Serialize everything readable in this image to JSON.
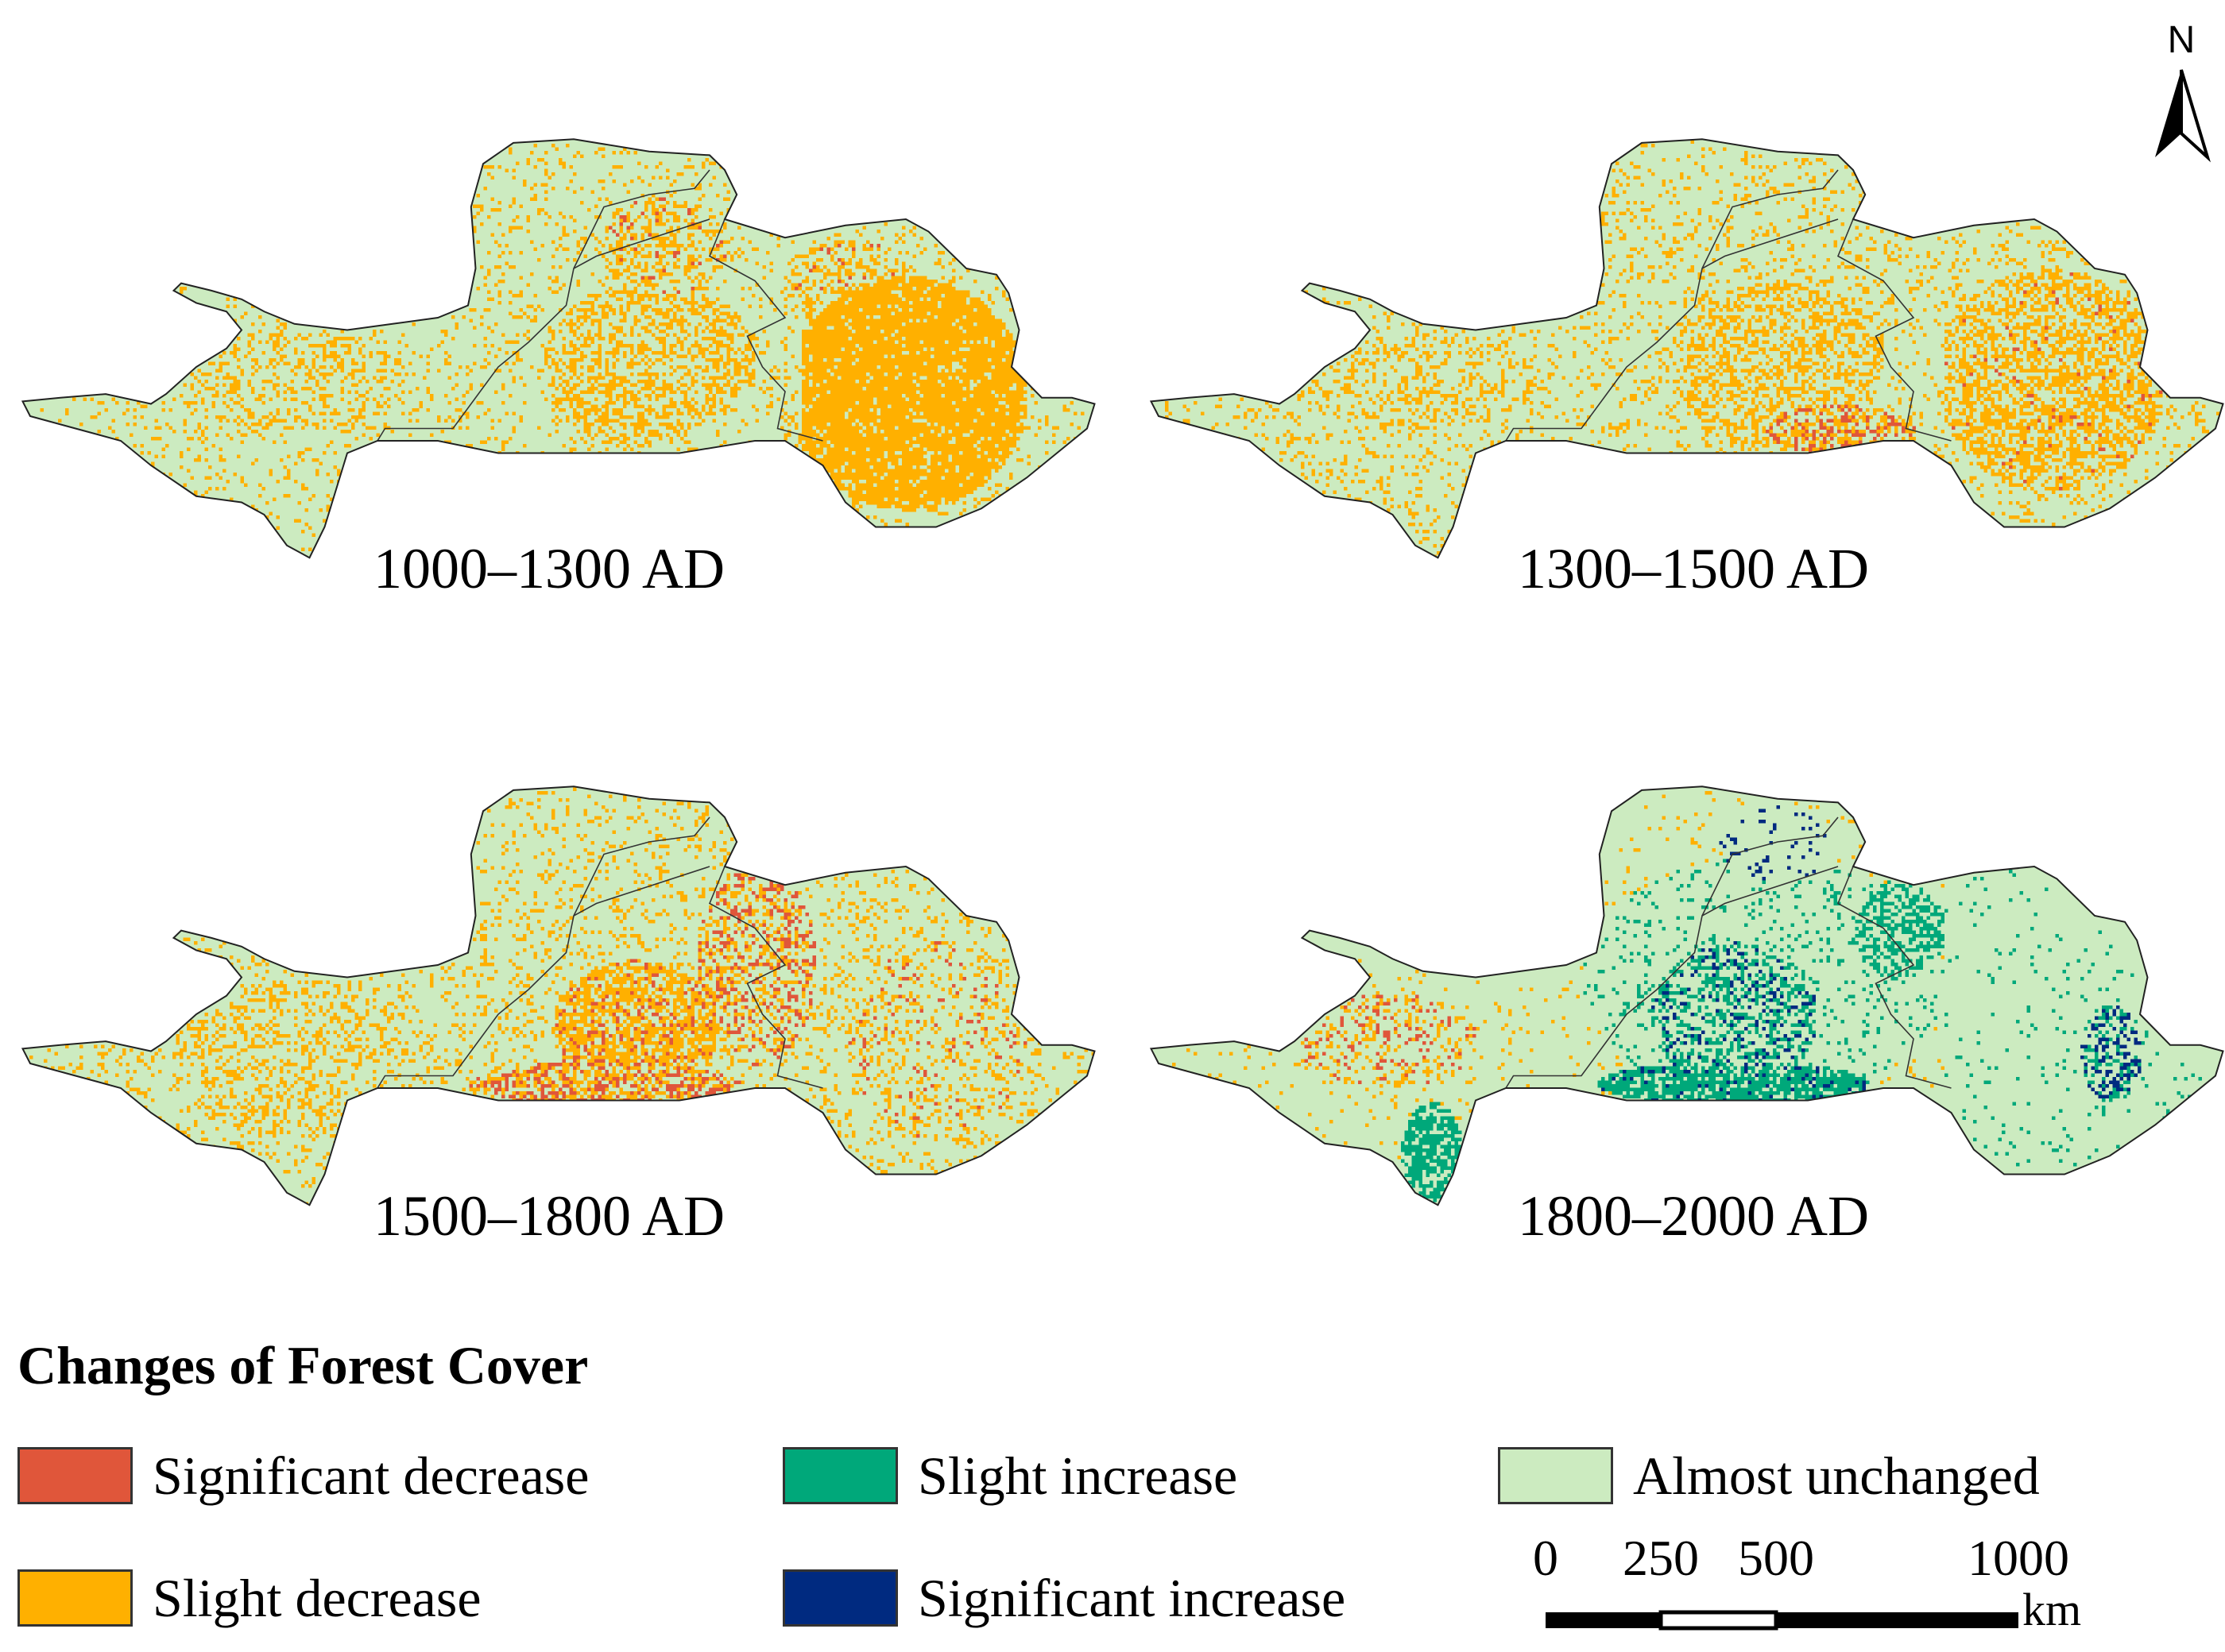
{
  "panels": [
    {
      "label": "1000–1300 AD",
      "scenario": "p1"
    },
    {
      "label": "1300–1500 AD",
      "scenario": "p2"
    },
    {
      "label": "1500–1800 AD",
      "scenario": "p3"
    },
    {
      "label": "1800–2000 AD",
      "scenario": "p4"
    }
  ],
  "north_arrow": {
    "label": "N"
  },
  "legend": {
    "title": "Changes of Forest Cover",
    "items": [
      {
        "label": "Significant decrease",
        "color": "#e0563a"
      },
      {
        "label": "Slight decrease",
        "color": "#ffb000"
      },
      {
        "label": "Slight increase",
        "color": "#00a87a"
      },
      {
        "label": "Significant increase",
        "color": "#002a80"
      },
      {
        "label": "Almost unchanged",
        "color": "#ccebc0"
      }
    ]
  },
  "scale_bar": {
    "ticks": [
      "0",
      "250",
      "500",
      "1000"
    ],
    "unit": "km"
  }
}
